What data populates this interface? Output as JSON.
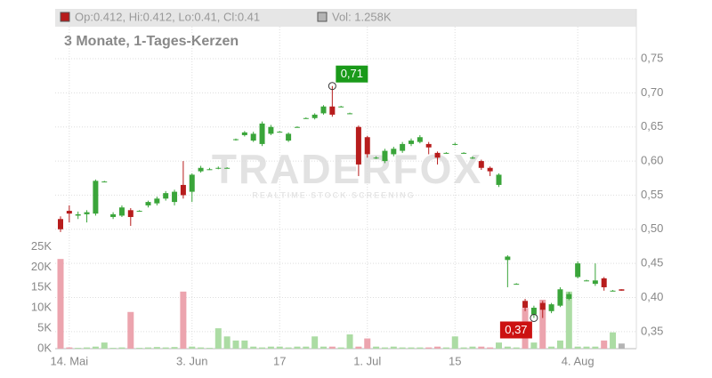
{
  "chart_data": {
    "type": "candlestick",
    "subtitle": "3 Monate, 1-Tages-Kerzen",
    "info": "Op:0.412, Hi:0.412, Lo:0.41, Cl:0.41",
    "volume_info": "Vol: 1.258K",
    "watermark": "TRADERFOX",
    "watermark_sub": "REALTIME STOCK SCREENING",
    "categories": [
      null,
      "14. Mai",
      null,
      null,
      null,
      null,
      null,
      null,
      null,
      null,
      null,
      null,
      null,
      null,
      null,
      "3. Jun",
      null,
      null,
      null,
      null,
      null,
      null,
      null,
      null,
      null,
      "17",
      null,
      null,
      null,
      null,
      null,
      null,
      null,
      null,
      null,
      "1. Jul",
      null,
      null,
      null,
      null,
      null,
      null,
      null,
      null,
      null,
      "15",
      null,
      null,
      null,
      null,
      null,
      null,
      null,
      null,
      null,
      null,
      null,
      null,
      null,
      "4. Aug",
      null,
      null,
      null,
      null,
      null
    ],
    "open": [
      0.515,
      0.527,
      0.52,
      0.522,
      0.523,
      0.57,
      0.518,
      0.52,
      0.528,
      0.527,
      0.535,
      0.538,
      0.545,
      0.54,
      0.565,
      0.555,
      0.585,
      0.588,
      0.59,
      0.59,
      0.632,
      0.638,
      0.63,
      0.625,
      0.64,
      0.643,
      0.63,
      0.65,
      0.663,
      0.663,
      0.67,
      0.68,
      0.68,
      0.67,
      0.65,
      0.635,
      0.605,
      0.6,
      0.61,
      0.615,
      0.625,
      0.628,
      0.625,
      0.612,
      0.612,
      0.625,
      0.612,
      0.605,
      0.6,
      0.59,
      0.565,
      0.455,
      0.42,
      0.395,
      0.375,
      0.392,
      0.38,
      0.388,
      0.398,
      0.43,
      0.425,
      0.42,
      0.428,
      0.41,
      0.412
    ],
    "high": [
      0.519,
      0.535,
      0.526,
      0.528,
      0.573,
      0.571,
      0.525,
      0.535,
      0.531,
      0.528,
      0.542,
      0.548,
      0.556,
      0.558,
      0.6,
      0.582,
      0.593,
      0.59,
      0.592,
      0.591,
      0.633,
      0.644,
      0.643,
      0.658,
      0.653,
      0.644,
      0.642,
      0.651,
      0.664,
      0.67,
      0.682,
      0.71,
      0.681,
      0.671,
      0.652,
      0.637,
      0.607,
      0.618,
      0.621,
      0.628,
      0.633,
      0.638,
      0.628,
      0.614,
      0.613,
      0.627,
      0.613,
      0.607,
      0.602,
      0.592,
      0.582,
      0.462,
      0.421,
      0.398,
      0.388,
      0.395,
      0.392,
      0.415,
      0.408,
      0.453,
      0.426,
      0.45,
      0.43,
      0.411,
      0.412
    ],
    "low": [
      0.496,
      0.51,
      0.515,
      0.51,
      0.52,
      0.569,
      0.515,
      0.518,
      0.505,
      0.526,
      0.532,
      0.535,
      0.542,
      0.535,
      0.545,
      0.54,
      0.583,
      0.587,
      0.588,
      0.589,
      0.63,
      0.636,
      0.628,
      0.622,
      0.638,
      0.642,
      0.628,
      0.649,
      0.662,
      0.661,
      0.668,
      0.665,
      0.679,
      0.669,
      0.578,
      0.605,
      0.603,
      0.597,
      0.607,
      0.612,
      0.622,
      0.626,
      0.61,
      0.595,
      0.611,
      0.623,
      0.611,
      0.603,
      0.587,
      0.578,
      0.562,
      0.415,
      0.419,
      0.38,
      0.37,
      0.37,
      0.377,
      0.386,
      0.396,
      0.428,
      0.424,
      0.417,
      0.41,
      0.409,
      0.41
    ],
    "close": [
      0.5,
      0.523,
      0.522,
      0.525,
      0.571,
      0.57,
      0.522,
      0.532,
      0.518,
      0.527,
      0.54,
      0.545,
      0.553,
      0.555,
      0.55,
      0.58,
      0.59,
      0.588,
      0.59,
      0.59,
      0.632,
      0.642,
      0.64,
      0.655,
      0.65,
      0.643,
      0.64,
      0.65,
      0.663,
      0.668,
      0.68,
      0.668,
      0.68,
      0.67,
      0.595,
      0.61,
      0.605,
      0.615,
      0.618,
      0.625,
      0.63,
      0.635,
      0.62,
      0.605,
      0.612,
      0.625,
      0.612,
      0.605,
      0.59,
      0.585,
      0.58,
      0.46,
      0.42,
      0.385,
      0.385,
      0.382,
      0.39,
      0.412,
      0.405,
      0.45,
      0.425,
      0.425,
      0.415,
      0.41,
      0.41
    ],
    "volume": [
      22,
      0.3,
      0.2,
      0.3,
      0.5,
      1.5,
      0.2,
      0.3,
      9,
      0.2,
      0.3,
      0.4,
      0.3,
      0.4,
      14,
      0.5,
      0.3,
      0.2,
      5,
      3,
      2,
      2,
      0.5,
      0.3,
      0.5,
      0.5,
      0.3,
      0.5,
      0.5,
      3,
      0.5,
      0.5,
      0.3,
      3.5,
      0.5,
      2.5,
      0.5,
      0.3,
      0.5,
      0.3,
      0.3,
      0.3,
      0.3,
      0.5,
      0.3,
      3,
      0.3,
      0.5,
      0.5,
      0.3,
      1.5,
      0.5,
      0.3,
      10,
      1.5,
      12,
      0.5,
      2,
      14,
      0.5,
      0.5,
      0.5,
      2,
      4,
      1.258
    ],
    "up_color": "#3aa53a",
    "down_color": "#b71c1c",
    "volume_up_color": "#acdca4",
    "volume_down_color": "#eca4ae",
    "volume_current_color": "#b4b4b4",
    "ylim": [
      0.325,
      0.797
    ],
    "yticks": [
      {
        "value": 0.35,
        "label": "0,35"
      },
      {
        "value": 0.4,
        "label": "0,40"
      },
      {
        "value": 0.45,
        "label": "0,45"
      },
      {
        "value": 0.5,
        "label": "0,50"
      },
      {
        "value": 0.55,
        "label": "0,55"
      },
      {
        "value": 0.6,
        "label": "0,60"
      },
      {
        "value": 0.65,
        "label": "0,65"
      },
      {
        "value": 0.7,
        "label": "0,70"
      },
      {
        "value": 0.75,
        "label": "0,75"
      }
    ],
    "y2lim": [
      0,
      79
    ],
    "y2ticks": [
      {
        "value": 0,
        "label": "0K"
      },
      {
        "value": 5,
        "label": "5K"
      },
      {
        "value": 10,
        "label": "10K"
      },
      {
        "value": 15,
        "label": "15K"
      },
      {
        "value": 20,
        "label": "20K"
      },
      {
        "value": 25,
        "label": "25K"
      }
    ],
    "annotations": [
      {
        "label": "0,71",
        "value": 0.71,
        "index": 31,
        "kind": "high",
        "color": "#1a9a1a"
      },
      {
        "label": "0,37",
        "value": 0.37,
        "index": 54,
        "kind": "low",
        "color": "#cc1111"
      }
    ],
    "grid": true
  }
}
